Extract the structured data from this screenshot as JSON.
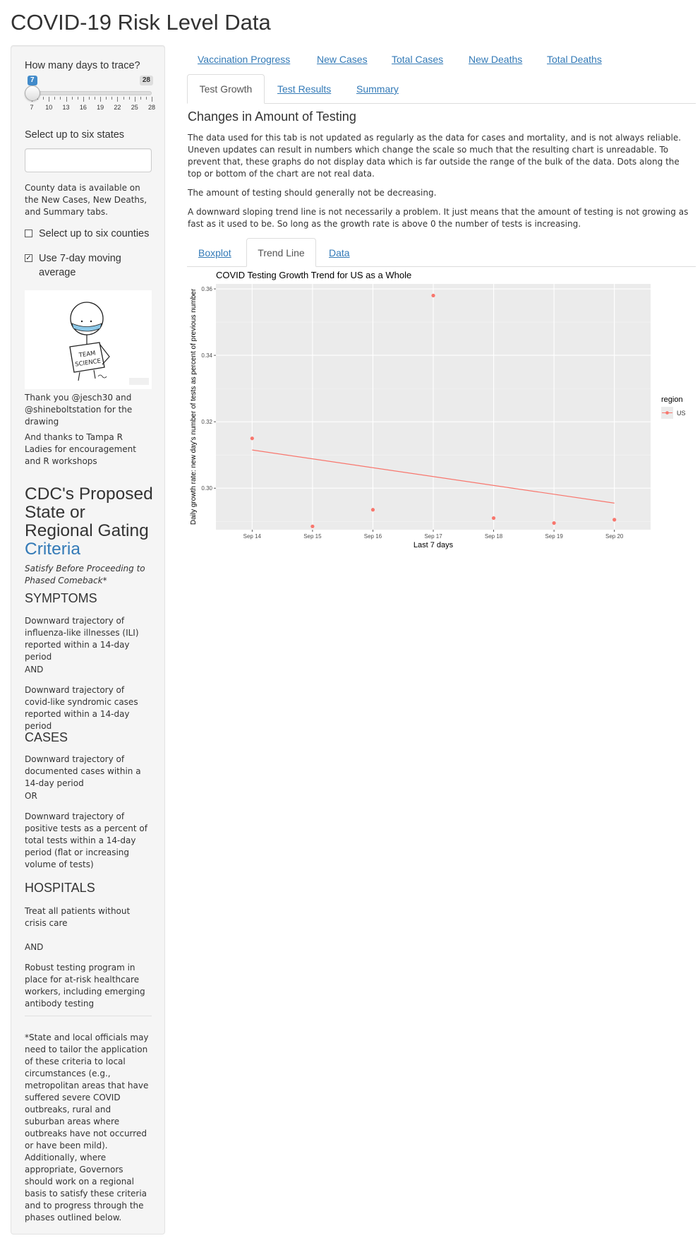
{
  "app_title": "COVID-19 Risk Level Data",
  "sidebar": {
    "days_label": "How many days to trace?",
    "slider": {
      "min": 7,
      "max": 28,
      "value": 7,
      "from_badge": "7",
      "to_badge": "28",
      "tick_labels": [
        "7",
        "10",
        "13",
        "16",
        "19",
        "22",
        "25",
        "28"
      ]
    },
    "states_label": "Select up to six states",
    "states_input_value": "",
    "county_note": "County data is available on the New Cases, New Deaths, and Summary tabs.",
    "counties_checkbox": {
      "label": "Select up to six counties",
      "checked": false
    },
    "moving_avg_checkbox": {
      "label": "Use 7-day moving average",
      "checked": true
    },
    "drawing_sign_text": [
      "TEAM",
      "SCIENCE"
    ],
    "thanks_1": "Thank you @jesch30 and @shineboltstation for the drawing",
    "thanks_2": "And thanks to Tampa R Ladies for encouragement and R workshops",
    "cdc_title_prefix": "CDC's Proposed State or Regional Gating",
    "cdc_title_link": "Criteria",
    "satisfy_text": "Satisfy Before Proceeding to Phased Comeback*",
    "symptoms_heading": "SYMPTOMS",
    "symptoms_1": "Downward trajectory of influenza-like illnesses (ILI) reported within a 14-day period",
    "and_1": "AND",
    "symptoms_2": "Downward trajectory of covid-like syndromic cases reported within a 14-day period",
    "cases_heading": "CASES",
    "cases_1": "Downward trajectory of documented cases within a 14-day period",
    "or_1": "OR",
    "cases_2": "Downward trajectory of positive tests as a percent of total tests within a 14-day period (flat or increasing volume of tests)",
    "hospitals_heading": "HOSPITALS",
    "hospitals_1": "Treat all patients without crisis care",
    "and_2": "AND",
    "hospitals_2": "Robust testing program in place for at-risk healthcare workers, including emerging antibody testing",
    "footnote": "*State and local officials may need to tailor the application of these criteria to local circumstances (e.g., metropolitan areas that have suffered severe COVID outbreaks, rural and suburban areas where outbreaks have not occurred or have been mild). Additionally, where appropriate, Governors should work on a regional basis to satisfy these criteria and to progress through the phases outlined below."
  },
  "top_nav": [
    "Vaccination Progress",
    "New Cases",
    "Total Cases",
    "New Deaths",
    "Total Deaths"
  ],
  "second_tabs": [
    "Test Growth",
    "Test Results",
    "Summary"
  ],
  "active_second_tab": "Test Growth",
  "main": {
    "heading": "Changes in Amount of Testing",
    "para_1": "The data used for this tab is not updated as regularly as the data for cases and mortality, and is not always reliable. Uneven updates can result in numbers which change the scale so much that the resulting chart is unreadable. To prevent that, these graphs do not display data which is far outside the range of the bulk of the data. Dots along the top or bottom of the chart are not real data.",
    "para_2": "The amount of testing should generally not be decreasing.",
    "para_3": "A downward sloping trend line is not necessarily a problem. It just means that the amount of testing is not growing as fast as it used to be. So long as the growth rate is above 0 the number of tests is increasing.",
    "inner_tabs": [
      "Boxplot",
      "Trend Line",
      "Data"
    ],
    "active_inner_tab": "Trend Line"
  },
  "colors": {
    "accent": "#337ab7",
    "series": "#F8766D",
    "panel": "#EBEBEB",
    "sidebar": "#f5f5f5"
  },
  "chart_data": {
    "type": "scatter",
    "title": "COVID Testing Growth Trend for US as a Whole",
    "xlabel": "Last 7 days",
    "ylabel": "Daily growth rate: new day's number of tests as percent of previous number",
    "categories": [
      "Sep 14",
      "Sep 15",
      "Sep 16",
      "Sep 17",
      "Sep 18",
      "Sep 19",
      "Sep 20"
    ],
    "y_ticks": [
      "0.30",
      "0.32",
      "0.34",
      "0.36"
    ],
    "ylim": [
      0.2875,
      0.3615
    ],
    "series": [
      {
        "name": "US",
        "values": [
          0.315,
          0.2885,
          0.2935,
          0.358,
          0.291,
          0.2895,
          0.2905
        ]
      }
    ],
    "trend_line": {
      "start": 0.3115,
      "end": 0.2955
    },
    "legend": {
      "title": "region",
      "position": "right"
    },
    "grid": true
  }
}
